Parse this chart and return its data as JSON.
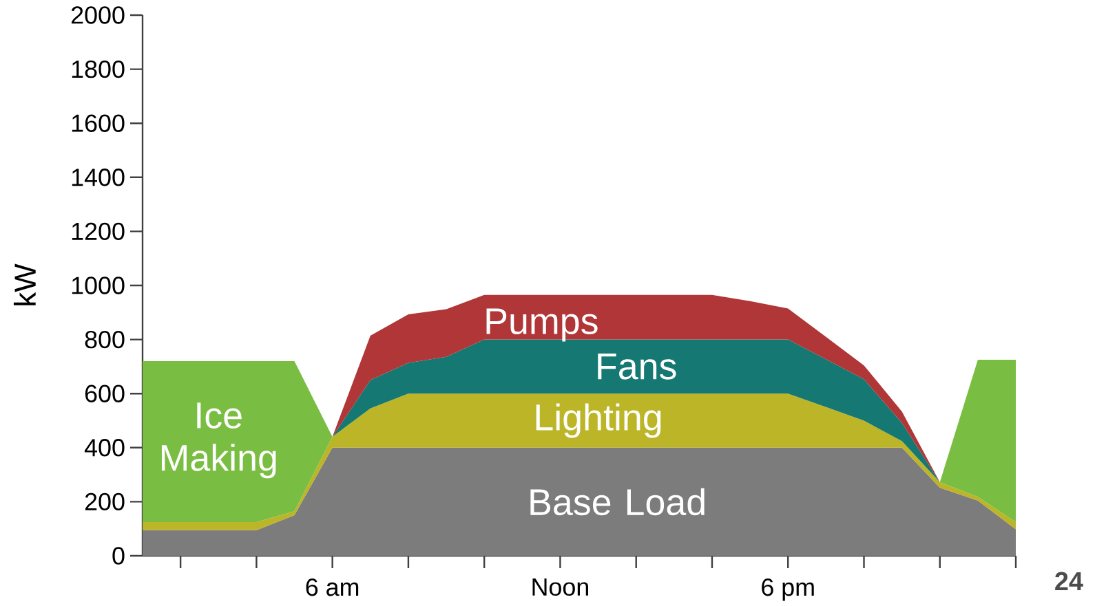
{
  "chart_data": {
    "type": "area",
    "stacked": true,
    "ylabel": "kW",
    "categories": [
      null,
      null,
      null,
      null,
      null,
      "6 am",
      null,
      null,
      null,
      null,
      null,
      "Noon",
      null,
      null,
      null,
      null,
      null,
      "6 pm",
      null,
      null,
      null,
      null,
      null,
      null
    ],
    "series": [
      {
        "name": "Base Load",
        "color": "#7c7c7c",
        "values": [
          95,
          95,
          95,
          95,
          150,
          400,
          400,
          400,
          400,
          400,
          400,
          400,
          400,
          400,
          400,
          400,
          400,
          400,
          400,
          400,
          400,
          252,
          204,
          98
        ]
      },
      {
        "name": "Lighting",
        "color": "#bcb527",
        "values": [
          30,
          30,
          30,
          30,
          15,
          40,
          145,
          200,
          200,
          200,
          200,
          200,
          200,
          200,
          200,
          200,
          200,
          200,
          150,
          100,
          24,
          20,
          14,
          27
        ]
      },
      {
        "name": "Fans",
        "color": "#167872",
        "values": [
          0,
          0,
          0,
          0,
          0,
          0,
          105,
          114,
          136,
          200,
          200,
          200,
          200,
          200,
          200,
          200,
          200,
          200,
          177,
          153,
          68,
          0,
          0,
          0
        ]
      },
      {
        "name": "Pumps",
        "color": "#b03637",
        "values": [
          0,
          0,
          0,
          0,
          0,
          0,
          164,
          179,
          176,
          165,
          165,
          165,
          165,
          165,
          165,
          165,
          142,
          115,
          83,
          51,
          42,
          0,
          0,
          0
        ]
      },
      {
        "name": "Ice Making",
        "color": "#79be43",
        "values": [
          595,
          595,
          595,
          595,
          555,
          0,
          null,
          null,
          null,
          null,
          null,
          null,
          null,
          null,
          null,
          null,
          null,
          null,
          null,
          null,
          null,
          0,
          507,
          600
        ]
      }
    ],
    "ylim": [
      0,
      2000
    ],
    "yticks": [
      0,
      200,
      400,
      600,
      800,
      1000,
      1200,
      1400,
      1600,
      1800,
      2000
    ],
    "annotations": [
      "24"
    ]
  }
}
